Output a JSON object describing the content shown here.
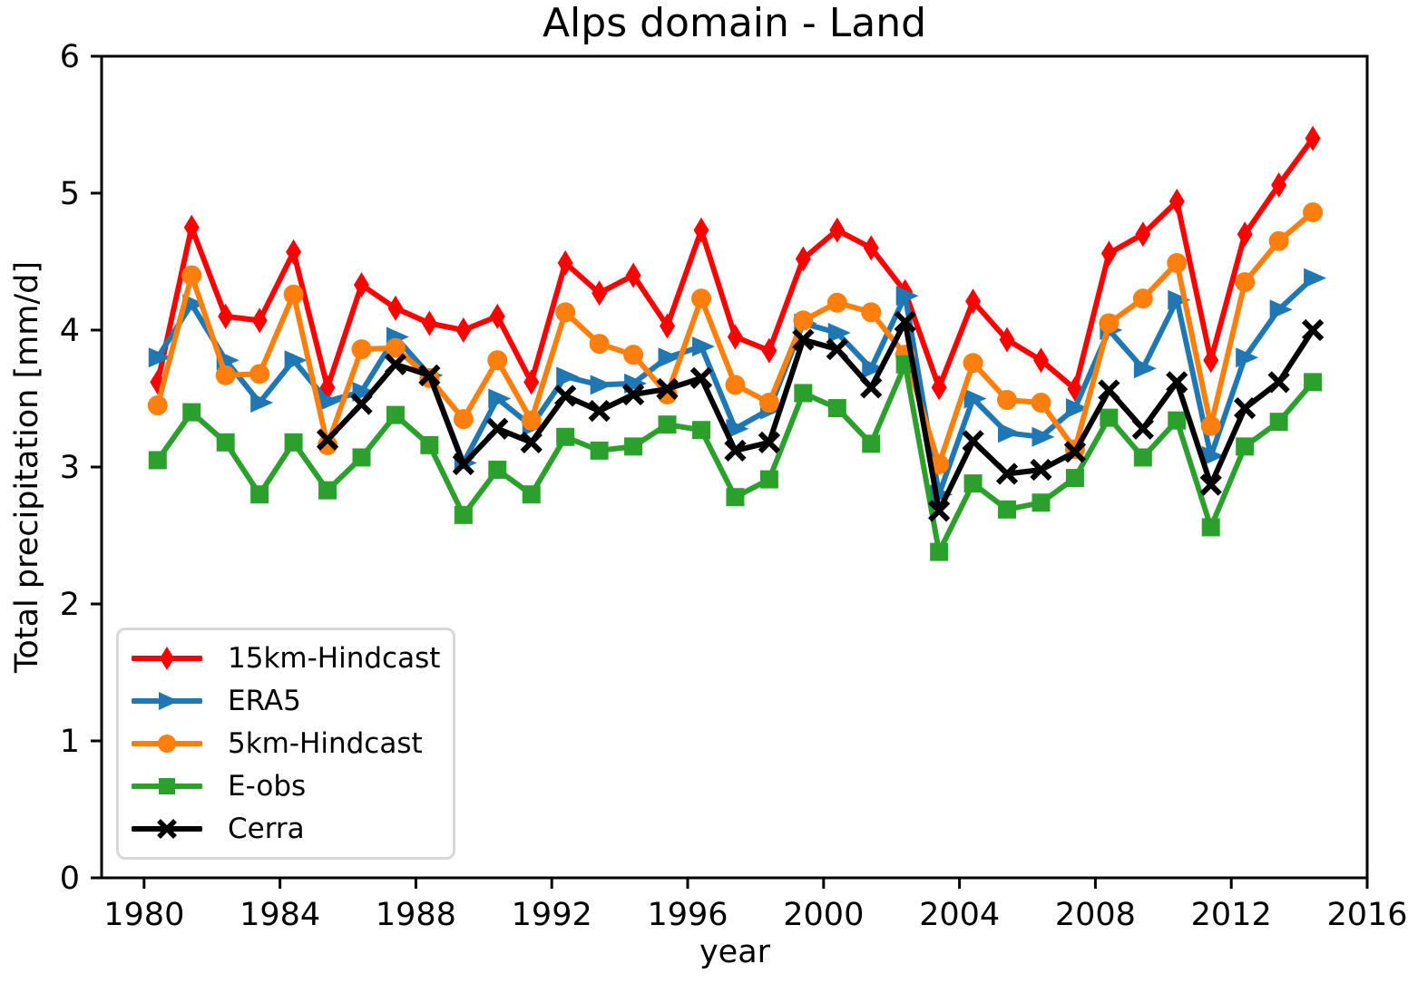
{
  "title": "Alps domain - Land",
  "axes": {
    "xlabel": "year",
    "ylabel": "Total precipitation [mm/d]",
    "xticks": [
      1980,
      1984,
      1988,
      1992,
      1996,
      2000,
      2004,
      2008,
      2012,
      2016
    ],
    "yticks": [
      0,
      1,
      2,
      3,
      4,
      5,
      6
    ]
  },
  "legend": {
    "position": "lower left",
    "entries": [
      "15km-Hindcast",
      "ERA5",
      "5km-Hindcast",
      "E-obs",
      "Cerra"
    ]
  },
  "chart_data": {
    "type": "line",
    "title": "Alps domain - Land",
    "xlabel": "year",
    "ylabel": "Total precipitation [mm/d]",
    "xlim": [
      1978.75,
      2016.0
    ],
    "ylim": [
      0,
      6
    ],
    "x_point_offset": 0.4,
    "grid": false,
    "legend_position": "lower left",
    "years": [
      1980,
      1981,
      1982,
      1983,
      1984,
      1985,
      1986,
      1987,
      1988,
      1989,
      1990,
      1991,
      1992,
      1993,
      1994,
      1995,
      1996,
      1997,
      1998,
      1999,
      2000,
      2001,
      2002,
      2003,
      2004,
      2005,
      2006,
      2007,
      2008,
      2009,
      2010,
      2011,
      2012,
      2013,
      2014
    ],
    "series": [
      {
        "name": "15km-Hindcast",
        "color": "#ff0000",
        "marker": "diamond",
        "values": [
          3.62,
          4.75,
          4.1,
          4.07,
          4.57,
          3.58,
          4.33,
          4.16,
          4.05,
          4.0,
          4.1,
          3.62,
          4.49,
          4.27,
          4.4,
          4.03,
          4.73,
          3.95,
          3.85,
          4.52,
          4.73,
          4.6,
          4.28,
          3.58,
          4.21,
          3.93,
          3.78,
          3.57,
          4.56,
          4.7,
          4.94,
          3.78,
          4.7,
          5.06,
          5.4
        ]
      },
      {
        "name": "ERA5",
        "color": "#1f77b4",
        "marker": "triangle-right",
        "values": [
          3.8,
          4.19,
          3.78,
          3.47,
          3.78,
          3.48,
          3.55,
          3.95,
          3.67,
          3.03,
          3.5,
          3.3,
          3.66,
          3.6,
          3.61,
          3.8,
          3.88,
          3.28,
          3.42,
          4.05,
          3.98,
          3.72,
          4.25,
          2.8,
          3.5,
          3.25,
          3.22,
          3.43,
          4.0,
          3.72,
          4.22,
          3.08,
          3.8,
          4.15,
          4.38
        ]
      },
      {
        "name": "5km-Hindcast",
        "color": "#ff7f0e",
        "marker": "circle",
        "values": [
          3.45,
          4.4,
          3.67,
          3.68,
          4.26,
          3.16,
          3.86,
          3.87,
          3.65,
          3.35,
          3.78,
          3.34,
          4.13,
          3.9,
          3.82,
          3.53,
          4.23,
          3.6,
          3.47,
          4.07,
          4.2,
          4.13,
          3.82,
          3.02,
          3.76,
          3.49,
          3.47,
          3.13,
          4.05,
          4.23,
          4.49,
          3.3,
          4.35,
          4.65,
          4.86
        ]
      },
      {
        "name": "E-obs",
        "color": "#2ca02c",
        "marker": "square",
        "values": [
          3.05,
          3.4,
          3.18,
          2.8,
          3.18,
          2.83,
          3.07,
          3.38,
          3.16,
          2.65,
          2.98,
          2.8,
          3.22,
          3.12,
          3.15,
          3.31,
          3.27,
          2.78,
          2.91,
          3.54,
          3.43,
          3.17,
          3.75,
          2.38,
          2.88,
          2.69,
          2.74,
          2.92,
          3.36,
          3.07,
          3.34,
          2.56,
          3.15,
          3.33,
          3.62
        ]
      },
      {
        "name": "Cerra",
        "color": "#000000",
        "marker": "x",
        "values": [
          null,
          null,
          null,
          null,
          null,
          3.2,
          3.46,
          3.75,
          3.67,
          3.02,
          3.28,
          3.18,
          3.52,
          3.41,
          3.53,
          3.57,
          3.65,
          3.12,
          3.18,
          3.93,
          3.86,
          3.58,
          4.06,
          2.68,
          3.19,
          2.95,
          2.98,
          3.11,
          3.56,
          3.28,
          3.62,
          2.87,
          3.43,
          3.62,
          4.0
        ]
      }
    ]
  }
}
